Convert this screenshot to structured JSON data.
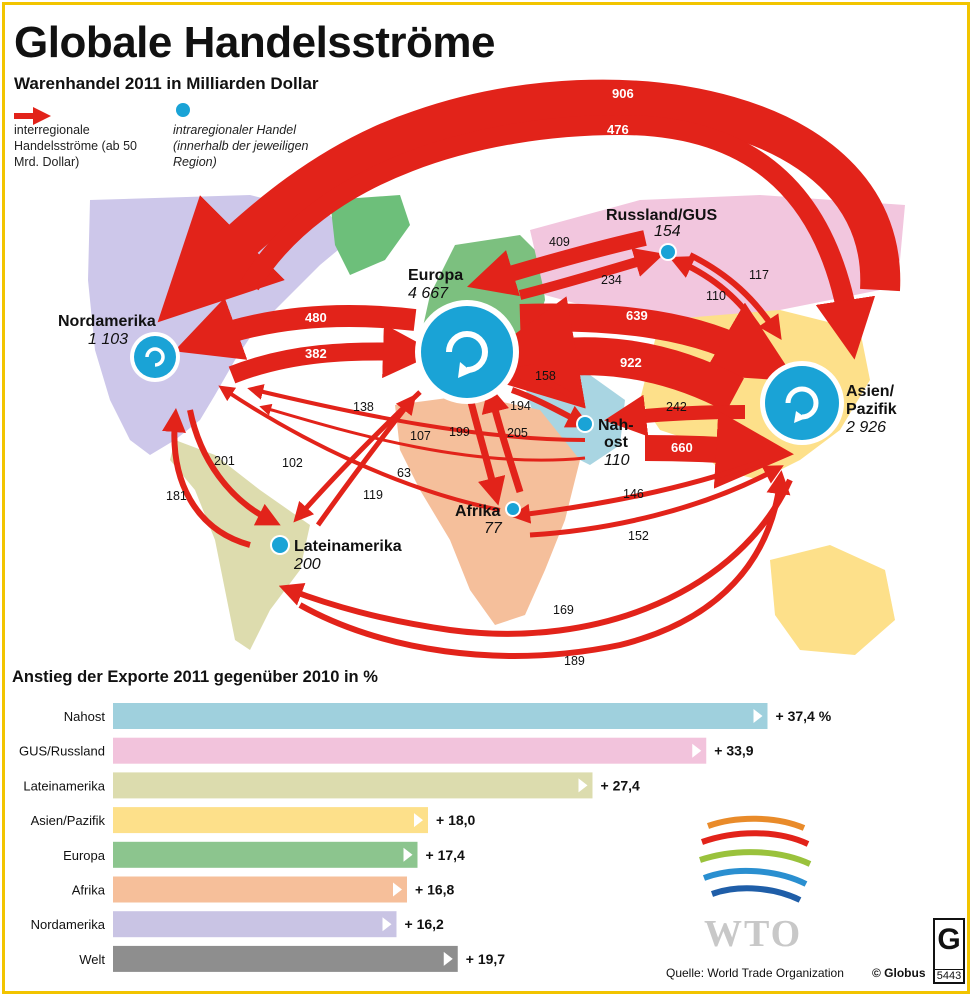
{
  "header": {
    "title": "Globale Handelsströme",
    "subtitle": "Warenhandel 2011 in Milliarden Dollar"
  },
  "legend": {
    "arrow_text": "interregionale Handelsströme (ab 50 Mrd. Dollar)",
    "intra_text": "intraregionaler Handel (innerhalb der jeweiligen Region)"
  },
  "regions": {
    "nordamerika": {
      "name": "Nordamerika",
      "intra": "1 103"
    },
    "europa": {
      "name": "Europa",
      "intra": "4 667"
    },
    "russland": {
      "name": "Russland/GUS",
      "intra": "154"
    },
    "asien": {
      "name": "Asien/ Pazifik",
      "name1": "Asien/",
      "name2": "Pazifik",
      "intra": "2 926"
    },
    "nahost": {
      "name": "Nah- ost",
      "name1": "Nah-",
      "name2": "ost",
      "intra": "110"
    },
    "afrika": {
      "name": "Afrika",
      "intra": "77"
    },
    "lateinamerika": {
      "name": "Lateinamerika",
      "intra": "200"
    }
  },
  "flows": {
    "asia_to_na": "906",
    "na_to_asia": "476",
    "eu_to_na": "480",
    "na_to_eu": "382",
    "ru_to_eu": "409",
    "eu_to_ru": "234",
    "ru_to_asia": "117",
    "asia_to_ru": "110",
    "eu_to_asia": "639",
    "asia_to_eu": "922",
    "me_to_eu": "158",
    "eu_to_me": "194",
    "asia_to_me": "242",
    "me_to_asia": "660",
    "eu_to_la": "138",
    "la_to_eu": "119",
    "eu_to_af": "199",
    "af_to_eu": "205",
    "me_to_na": "107",
    "na_to_la": "201",
    "la_to_na": "181",
    "af_to_na": "102",
    "me_to_na2": "63",
    "asia_to_af": "146",
    "af_to_asia": "152",
    "asia_to_la": "169",
    "la_to_asia": "189"
  },
  "chart_title": "Anstieg der Exporte 2011 gegenüber 2010 in %",
  "chart_data": {
    "type": "bar",
    "orientation": "horizontal",
    "title": "Anstieg der Exporte 2011 gegenüber 2010 in %",
    "categories": [
      "Nahost",
      "GUS/Russland",
      "Lateinamerika",
      "Asien/Pazifik",
      "Europa",
      "Afrika",
      "Nordamerika",
      "Welt"
    ],
    "values": [
      37.4,
      33.9,
      27.4,
      18.0,
      17.4,
      16.8,
      16.2,
      19.7
    ],
    "labels": [
      "+ 37,4 %",
      "+ 33,9",
      "+ 27,4",
      "+ 18,0",
      "+ 17,4",
      "+ 16,8",
      "+ 16,2",
      "+ 19,7"
    ],
    "colors": [
      "#9fd0dd",
      "#f2c3dc",
      "#dcdcae",
      "#fde08a",
      "#8cc58e",
      "#f6bf9a",
      "#c9c4e4",
      "#8e8e8e"
    ]
  },
  "logo": {
    "text": "WTO"
  },
  "footer": {
    "source": "Quelle: World Trade Organization",
    "copyright": "© Globus",
    "globus_mark": "G",
    "globus_number": "5443"
  }
}
